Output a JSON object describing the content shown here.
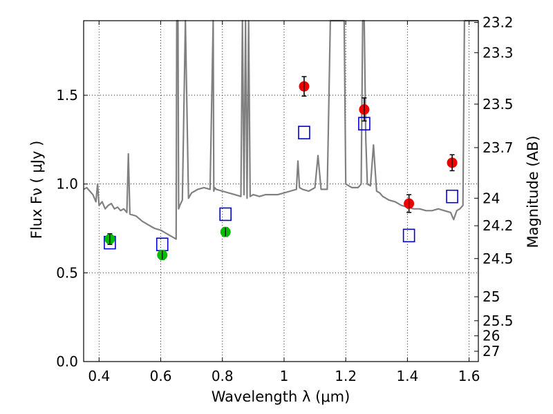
{
  "chart_data": {
    "type": "scatter",
    "xlabel": "Wavelength  λ (μm)",
    "ylabel": "Flux  Fν  ( μJy )",
    "ylabel_right": "Magnitude (AB)",
    "xlim": [
      0.35,
      1.63
    ],
    "ylim": [
      0.0,
      1.92
    ],
    "grid": true,
    "x_ticks": [
      0.4,
      0.6,
      0.8,
      1.0,
      1.2,
      1.4,
      1.6
    ],
    "x_tick_labels": [
      "0.4",
      "0.6",
      "0.8",
      "1",
      "1.2",
      "1.4",
      "1.6"
    ],
    "y_ticks": [
      0.0,
      0.5,
      1.0,
      1.5
    ],
    "y_tick_labels": [
      "0.0",
      "0.5",
      "1.0",
      "1.5"
    ],
    "right_ticks": [
      {
        "label": "23.2",
        "flux": 1.91
      },
      {
        "label": "23.3",
        "flux": 1.74
      },
      {
        "label": "23.5",
        "flux": 1.45
      },
      {
        "label": "23.7",
        "flux": 1.205
      },
      {
        "label": "24",
        "flux": 0.92
      },
      {
        "label": "24.2",
        "flux": 0.765
      },
      {
        "label": "24.5",
        "flux": 0.58
      },
      {
        "label": "25",
        "flux": 0.365
      },
      {
        "label": "25.5",
        "flux": 0.23
      },
      {
        "label": "26",
        "flux": 0.145
      },
      {
        "label": "27",
        "flux": 0.058
      }
    ],
    "series": [
      {
        "kind": "spectrum",
        "color": "#808080",
        "x": [
          0.35,
          0.36,
          0.37,
          0.38,
          0.39,
          0.395,
          0.4,
          0.41,
          0.42,
          0.43,
          0.44,
          0.45,
          0.46,
          0.47,
          0.48,
          0.49,
          0.495,
          0.5,
          0.52,
          0.54,
          0.56,
          0.58,
          0.6,
          0.62,
          0.64,
          0.65,
          0.652,
          0.656,
          0.658,
          0.662,
          0.67,
          0.68,
          0.69,
          0.7,
          0.72,
          0.74,
          0.76,
          0.77,
          0.772,
          0.775,
          0.78,
          0.8,
          0.82,
          0.84,
          0.86,
          0.865,
          0.87,
          0.875,
          0.88,
          0.885,
          0.89,
          0.9,
          0.92,
          0.94,
          0.96,
          0.98,
          1.0,
          1.02,
          1.04,
          1.045,
          1.05,
          1.06,
          1.08,
          1.1,
          1.11,
          1.12,
          1.14,
          1.15,
          1.152,
          1.16,
          1.18,
          1.19,
          1.195,
          1.2,
          1.22,
          1.24,
          1.25,
          1.255,
          1.26,
          1.265,
          1.27,
          1.28,
          1.29,
          1.3,
          1.31,
          1.32,
          1.34,
          1.36,
          1.38,
          1.4,
          1.42,
          1.44,
          1.46,
          1.48,
          1.5,
          1.52,
          1.54,
          1.55,
          1.56,
          1.57,
          1.58,
          1.585,
          1.59,
          1.6,
          1.61,
          1.62,
          1.63
        ],
        "y": [
          0.97,
          0.98,
          0.96,
          0.94,
          0.9,
          1.0,
          0.88,
          0.9,
          0.86,
          0.88,
          0.89,
          0.86,
          0.87,
          0.85,
          0.86,
          0.84,
          1.17,
          0.83,
          0.82,
          0.79,
          0.77,
          0.75,
          0.74,
          0.72,
          0.7,
          0.69,
          1.92,
          1.92,
          0.86,
          0.88,
          0.91,
          1.92,
          0.92,
          0.95,
          0.97,
          0.98,
          0.97,
          1.92,
          0.96,
          0.98,
          0.97,
          0.96,
          0.95,
          0.94,
          0.93,
          1.92,
          0.94,
          1.92,
          0.92,
          1.92,
          0.93,
          0.94,
          0.93,
          0.94,
          0.94,
          0.94,
          0.95,
          0.96,
          0.97,
          1.13,
          0.98,
          0.97,
          0.96,
          0.98,
          1.16,
          0.97,
          0.97,
          1.92,
          1.92,
          1.92,
          1.92,
          1.92,
          1.92,
          1.0,
          0.98,
          0.98,
          1.0,
          1.92,
          1.92,
          1.25,
          1.0,
          0.99,
          1.22,
          0.96,
          0.95,
          0.93,
          0.91,
          0.9,
          0.88,
          0.87,
          0.86,
          0.86,
          0.85,
          0.85,
          0.86,
          0.85,
          0.84,
          0.8,
          0.85,
          0.86,
          0.88,
          1.92,
          1.92,
          1.92,
          1.92,
          1.92,
          1.92
        ]
      },
      {
        "kind": "model-photometry",
        "marker": "open-square",
        "color": "#0000cc",
        "x": [
          0.435,
          0.605,
          0.81,
          1.065,
          1.26,
          1.405,
          1.545
        ],
        "y": [
          0.67,
          0.66,
          0.83,
          1.29,
          1.34,
          0.71,
          0.93
        ]
      },
      {
        "kind": "observed-optical",
        "marker": "filled-circle",
        "color": "#00bb00",
        "x": [
          0.435,
          0.605,
          0.81
        ],
        "y": [
          0.69,
          0.6,
          0.73
        ],
        "err": [
          0.03,
          0.025,
          0.025
        ]
      },
      {
        "kind": "observed-nir",
        "marker": "filled-circle",
        "color": "#ee0000",
        "x": [
          1.065,
          1.26,
          1.405,
          1.545
        ],
        "y": [
          1.55,
          1.42,
          0.89,
          1.12
        ],
        "err": [
          0.055,
          0.065,
          0.05,
          0.045
        ]
      }
    ]
  }
}
